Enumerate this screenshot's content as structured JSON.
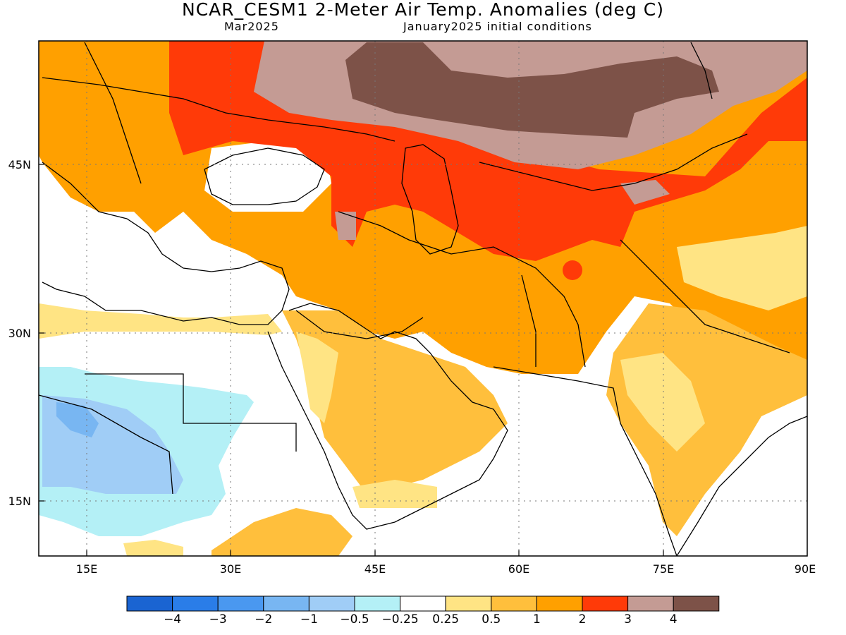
{
  "title": "NCAR_CESM1 2-Meter Air Temp. Anomalies (deg C)",
  "subtitle_left": "Mar2025",
  "subtitle_right": "January2025 initial conditions",
  "axes": {
    "lon_ticks": [
      "15E",
      "30E",
      "45E",
      "60E",
      "75E",
      "90E"
    ],
    "lat_ticks": [
      "45N",
      "30N",
      "15N"
    ],
    "lon_range": [
      10,
      90
    ],
    "lat_range": [
      10,
      56
    ]
  },
  "colorbar": {
    "labels": [
      "-4",
      "-3",
      "-2",
      "-1",
      "-0.5",
      "-0.25",
      "0.25",
      "0.5",
      "1",
      "2",
      "3",
      "4"
    ],
    "colors": [
      "#1a64d2",
      "#2a7de8",
      "#4a98f0",
      "#78b6f2",
      "#a0cdf6",
      "#b4f0f6",
      "#ffffff",
      "#ffe484",
      "#ffbf3c",
      "#ffa000",
      "#ff3a08",
      "#c49b94",
      "#7d5248"
    ]
  }
}
